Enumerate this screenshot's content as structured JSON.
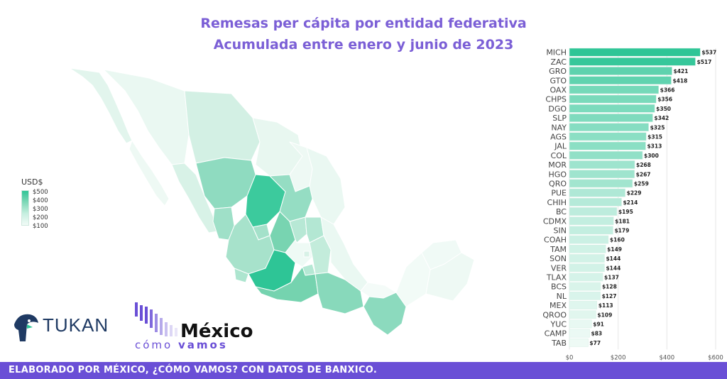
{
  "title_line1": "Remesas per cápita por entidad federativa",
  "title_line2": "Acumulada entre enero y junio de 2023",
  "legend": {
    "title": "USD$",
    "ticks": [
      "$500",
      "$400",
      "$300",
      "$200",
      "$100"
    ]
  },
  "footer": "ELABORADO POR MÉXICO, ¿CÓMO VAMOS? CON DATOS DE BANXICO.",
  "logos": {
    "tukan": "TUKAN",
    "mcv_main": "México",
    "mcv_sub_light": "cómo",
    "mcv_sub_bold": "vamos"
  },
  "colors": {
    "bar_high": "#2ec596",
    "bar_low": "#eefaf5",
    "title": "#7b5fd6",
    "footer_bg": "#6a4fd6"
  },
  "chart_data": {
    "type": "bar",
    "orientation": "horizontal",
    "categories": [
      "MICH",
      "ZAC",
      "GRO",
      "GTO",
      "OAX",
      "CHPS",
      "DGO",
      "SLP",
      "NAY",
      "AGS",
      "JAL",
      "COL",
      "MOR",
      "HGO",
      "QRO",
      "PUE",
      "CHIH",
      "BC",
      "CDMX",
      "SIN",
      "COAH",
      "TAM",
      "SON",
      "VER",
      "TLAX",
      "BCS",
      "NL",
      "MEX",
      "QROO",
      "YUC",
      "CAMP",
      "TAB"
    ],
    "values": [
      537,
      517,
      421,
      418,
      366,
      356,
      350,
      342,
      325,
      315,
      313,
      300,
      268,
      267,
      259,
      229,
      214,
      195,
      181,
      179,
      160,
      149,
      144,
      144,
      137,
      128,
      127,
      113,
      109,
      91,
      83,
      77
    ],
    "value_labels": [
      "$537",
      "$517",
      "$421",
      "$418",
      "$366",
      "$356",
      "$350",
      "$342",
      "$325",
      "$315",
      "$313",
      "$300",
      "$268",
      "$267",
      "$259",
      "$229",
      "$214",
      "$195",
      "$181",
      "$179",
      "$160",
      "$149",
      "$144",
      "$144",
      "$137",
      "$128",
      "$127",
      "$113",
      "$109",
      "$91",
      "$83",
      "$77"
    ],
    "xlim": [
      0,
      600
    ],
    "xticks": [
      0,
      200,
      400,
      600
    ],
    "xtick_labels": [
      "$0",
      "$200",
      "$400",
      "$600"
    ]
  }
}
